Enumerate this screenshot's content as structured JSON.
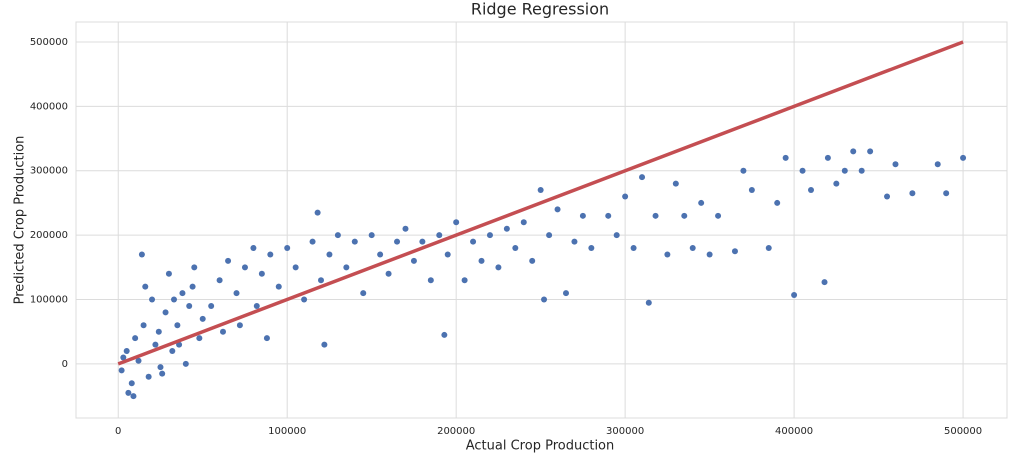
{
  "chart_data": {
    "type": "scatter",
    "title": "Ridge Regression",
    "x_label": "Actual Crop Production",
    "y_label": "Predicted Crop Production",
    "xlim": [
      -25000,
      526000
    ],
    "ylim": [
      -84000,
      531000
    ],
    "xticks": [
      0,
      100000,
      200000,
      300000,
      400000,
      500000
    ],
    "yticks": [
      0,
      100000,
      200000,
      300000,
      400000,
      500000
    ],
    "grid": true,
    "points": {
      "color": "#4c72b0",
      "x": [
        2000,
        5000,
        8000,
        10000,
        12000,
        15000,
        18000,
        20000,
        22000,
        25000,
        28000,
        30000,
        32000,
        35000,
        38000,
        40000,
        42000,
        45000,
        48000,
        50000,
        3000,
        6000,
        9000,
        14000,
        16000,
        24000,
        26000,
        33000,
        36000,
        44000,
        55000,
        60000,
        62000,
        65000,
        70000,
        72000,
        75000,
        80000,
        82000,
        85000,
        88000,
        90000,
        95000,
        100000,
        105000,
        110000,
        115000,
        118000,
        120000,
        122000,
        125000,
        130000,
        135000,
        140000,
        145000,
        150000,
        155000,
        160000,
        165000,
        170000,
        175000,
        180000,
        185000,
        190000,
        193000,
        195000,
        200000,
        205000,
        210000,
        215000,
        220000,
        225000,
        230000,
        235000,
        240000,
        245000,
        250000,
        252000,
        255000,
        260000,
        265000,
        270000,
        275000,
        280000,
        290000,
        295000,
        300000,
        305000,
        310000,
        314000,
        318000,
        325000,
        330000,
        335000,
        340000,
        345000,
        350000,
        355000,
        365000,
        370000,
        375000,
        385000,
        390000,
        395000,
        400000,
        405000,
        410000,
        418000,
        420000,
        425000,
        430000,
        435000,
        440000,
        445000,
        455000,
        460000,
        470000,
        485000,
        490000,
        500000
      ],
      "y": [
        -10000,
        20000,
        -30000,
        40000,
        5000,
        60000,
        -20000,
        100000,
        30000,
        -5000,
        80000,
        140000,
        20000,
        60000,
        110000,
        0,
        90000,
        150000,
        40000,
        70000,
        10000,
        -45000,
        -50000,
        170000,
        120000,
        50000,
        -15000,
        100000,
        30000,
        120000,
        90000,
        130000,
        50000,
        160000,
        110000,
        60000,
        150000,
        180000,
        90000,
        140000,
        40000,
        170000,
        120000,
        180000,
        150000,
        100000,
        190000,
        235000,
        130000,
        30000,
        170000,
        200000,
        150000,
        190000,
        110000,
        200000,
        170000,
        140000,
        190000,
        210000,
        160000,
        190000,
        130000,
        200000,
        45000,
        170000,
        220000,
        130000,
        190000,
        160000,
        200000,
        150000,
        210000,
        180000,
        220000,
        160000,
        270000,
        100000,
        200000,
        240000,
        110000,
        190000,
        230000,
        180000,
        230000,
        200000,
        260000,
        180000,
        290000,
        95000,
        230000,
        170000,
        280000,
        230000,
        180000,
        250000,
        170000,
        230000,
        175000,
        300000,
        270000,
        180000,
        250000,
        320000,
        107000,
        300000,
        270000,
        127000,
        320000,
        280000,
        300000,
        330000,
        300000,
        330000,
        260000,
        310000,
        265000,
        310000,
        265000,
        320000
      ]
    },
    "line": {
      "color": "#c44e52",
      "x": [
        0,
        500000
      ],
      "y": [
        0,
        500000
      ]
    }
  }
}
